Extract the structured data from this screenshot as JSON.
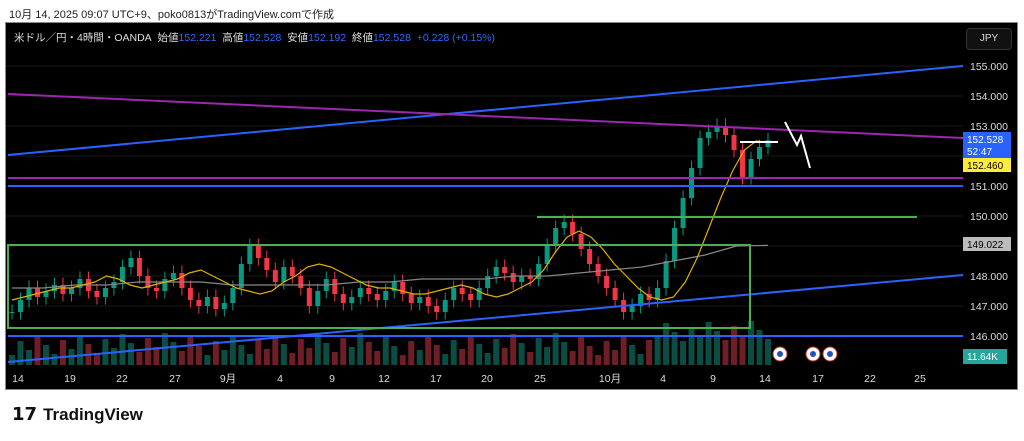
{
  "caption": "10月 14, 2025 09:07 UTC+9、poko0813がTradingView.comで作成",
  "legend": {
    "symbol": "米ドル／円・4時間・OANDA",
    "open_label": "始値",
    "open": "152.221",
    "high_label": "高値",
    "high": "152.528",
    "low_label": "安値",
    "low": "152.192",
    "close_label": "終値",
    "close": "152.528",
    "change": "+0.228 (+0.15%)"
  },
  "currency": "JPY",
  "price_axis": [
    "155.000",
    "154.000",
    "153.000",
    "151.000",
    "150.000",
    "148.000",
    "147.000",
    "146.000"
  ],
  "badges": {
    "last_price": "152.528",
    "countdown": "52:47",
    "ma_fast": "152.460",
    "ma_slow": "149.022",
    "volume": "11.64K"
  },
  "time_axis": [
    "14",
    "19",
    "22",
    "27",
    "9月",
    "4",
    "9",
    "12",
    "17",
    "20",
    "25",
    "10月",
    "4",
    "9",
    "14",
    "17",
    "22",
    "25"
  ],
  "colors": {
    "up": "#089981",
    "down": "#f23645",
    "blue_line": "#2962ff",
    "purple_line": "#9c27b0",
    "green_line": "#4caf50",
    "ma_fast": "#e0b000",
    "ma_slow": "#888888"
  },
  "chart_data": {
    "type": "candlestick",
    "ylim": [
      145.3,
      155.7
    ],
    "closes": [
      146.8,
      147.2,
      147.6,
      147.3,
      147.5,
      147.7,
      147.4,
      147.6,
      147.9,
      147.5,
      147.3,
      147.6,
      147.8,
      148.3,
      148.6,
      148.0,
      147.6,
      147.5,
      147.9,
      148.1,
      147.6,
      147.2,
      147.0,
      147.3,
      146.9,
      147.1,
      147.6,
      148.4,
      149.0,
      148.6,
      148.2,
      147.8,
      148.3,
      148.0,
      147.6,
      147.0,
      147.5,
      147.9,
      147.4,
      147.1,
      147.3,
      147.6,
      147.4,
      147.2,
      147.5,
      147.8,
      147.4,
      147.1,
      147.3,
      147.0,
      146.8,
      147.2,
      147.6,
      147.4,
      147.2,
      147.6,
      148.0,
      148.3,
      148.1,
      147.8,
      148.0,
      147.9,
      148.4,
      149.0,
      149.6,
      149.8,
      149.4,
      148.9,
      148.4,
      148.0,
      147.6,
      147.2,
      146.8,
      147.0,
      147.4,
      147.2,
      147.6,
      148.5,
      149.6,
      150.6,
      151.6,
      152.6,
      152.8,
      153.0,
      152.7,
      152.2,
      151.3,
      151.9,
      152.3,
      152.528
    ],
    "ma_fast": [
      147.2,
      147.3,
      147.4,
      147.5,
      147.6,
      147.6,
      147.7,
      147.8,
      148.0,
      147.9,
      147.7,
      147.6,
      147.7,
      147.8,
      147.9,
      148.1,
      148.2,
      148.0,
      147.8,
      147.6,
      147.5,
      147.4,
      147.5,
      147.8,
      148.0,
      148.3,
      148.4,
      148.3,
      148.1,
      147.9,
      147.7,
      147.6,
      147.6,
      147.5,
      147.4,
      147.4,
      147.5,
      147.6,
      147.7,
      147.6,
      147.4,
      147.3,
      147.4,
      147.6,
      147.8,
      148.2,
      148.8,
      149.3,
      149.5,
      149.3,
      148.9,
      148.4,
      148.0,
      147.6,
      147.3,
      147.2,
      147.3,
      147.8,
      148.6,
      149.6,
      150.6,
      151.5,
      152.2,
      152.5,
      152.46
    ],
    "ma_slow": [
      147.6,
      147.6,
      147.7,
      147.7,
      147.8,
      147.8,
      147.8,
      147.7,
      147.7,
      147.7,
      147.7,
      147.8,
      147.8,
      147.9,
      147.9,
      147.9,
      148.0,
      148.0,
      148.1,
      148.2,
      148.3,
      148.5,
      148.7,
      149.0,
      149.022
    ]
  }
}
